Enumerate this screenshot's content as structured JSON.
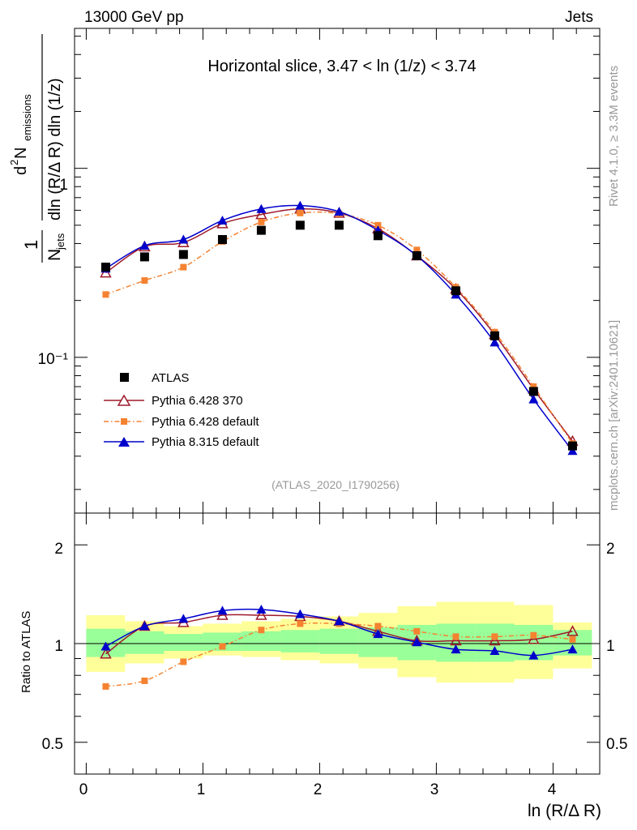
{
  "header": {
    "left": "13000 GeV pp",
    "right": "Jets"
  },
  "side_label_top": "Rivet 4.1.0, ≥ 3.3M events",
  "side_label_bottom": "mcplots.cern.ch [arXiv:2401.10621]",
  "watermark": "(ATLAS_2020_I1790256)",
  "chart_data": [
    {
      "id": "main",
      "type": "scatter",
      "title": "Horizontal slice, 3.47 < ln (1/z) < 3.74",
      "xlabel": "ln (R/Δ R)",
      "ylabel": "1/N_jets dN_emissions / dln(R/ΔR) dln(1/z)",
      "ylabel_parts": {
        "one": "1",
        "njets_n": "N",
        "njets_sub": "jets",
        "num": "d",
        "num_sup": "2",
        "num_n": " N",
        "num_sub": "emissions",
        "den": "dln (R/Δ R) dln (1/z)"
      },
      "yscale": "log",
      "xlim": [
        -0.1,
        4.4
      ],
      "ylim": [
        0.015,
        5.5
      ],
      "x_ticks": [
        "0",
        "1",
        "2",
        "3",
        "4"
      ],
      "y_ticks": [
        "1",
        "10⁻¹"
      ],
      "x": [
        0.167,
        0.5,
        0.833,
        1.167,
        1.5,
        1.833,
        2.167,
        2.5,
        2.833,
        3.167,
        3.5,
        3.833,
        4.167
      ],
      "series": [
        {
          "name": "ATLAS",
          "color": "#000000",
          "marker": "square",
          "values": [
            0.3,
            0.34,
            0.35,
            0.42,
            0.47,
            0.5,
            0.5,
            0.44,
            0.345,
            0.225,
            0.13,
            0.066,
            0.034
          ]
        },
        {
          "name": "Pythia 6.428 370",
          "color": "#9e1a2a",
          "marker": "triangle-open",
          "values": [
            0.28,
            0.385,
            0.405,
            0.51,
            0.57,
            0.61,
            0.58,
            0.48,
            0.345,
            0.23,
            0.132,
            0.068,
            0.036
          ]
        },
        {
          "name": "Pythia 6.428 default",
          "color": "#f58231",
          "marker": "small-square",
          "dash": "dashdot",
          "values": [
            0.215,
            0.255,
            0.3,
            0.41,
            0.52,
            0.58,
            0.575,
            0.5,
            0.37,
            0.235,
            0.136,
            0.07,
            0.035
          ]
        },
        {
          "name": "Pythia 8.315 default",
          "color": "#0000cc",
          "marker": "triangle",
          "values": [
            0.295,
            0.39,
            0.42,
            0.53,
            0.61,
            0.635,
            0.59,
            0.47,
            0.345,
            0.215,
            0.12,
            0.06,
            0.032
          ]
        }
      ],
      "legend_position": "bottom-left"
    },
    {
      "id": "ratio",
      "type": "line",
      "ylabel": "Ratio to ATLAS",
      "xlabel": "ln (R/Δ R)",
      "ylim": [
        0.4,
        2.5
      ],
      "yscale": "log",
      "y_ticks": [
        "2",
        "1",
        "0.5"
      ],
      "x_ticks": [
        "0",
        "1",
        "2",
        "3",
        "4"
      ],
      "x": [
        0.167,
        0.5,
        0.833,
        1.167,
        1.5,
        1.833,
        2.167,
        2.5,
        2.833,
        3.167,
        3.5,
        3.833,
        4.167
      ],
      "bands": {
        "bin_edges": [
          0.0,
          0.333,
          0.667,
          1.0,
          1.333,
          1.667,
          2.0,
          2.333,
          2.667,
          3.0,
          3.333,
          3.667,
          4.0,
          4.333
        ],
        "yellow_lo": [
          0.82,
          0.87,
          0.9,
          0.92,
          0.91,
          0.89,
          0.87,
          0.84,
          0.79,
          0.76,
          0.76,
          0.78,
          0.84
        ],
        "yellow_hi": [
          1.22,
          1.17,
          1.13,
          1.15,
          1.17,
          1.19,
          1.21,
          1.24,
          1.3,
          1.34,
          1.34,
          1.31,
          1.16
        ],
        "green_lo": [
          0.91,
          0.93,
          0.95,
          0.95,
          0.95,
          0.94,
          0.93,
          0.91,
          0.89,
          0.88,
          0.88,
          0.89,
          0.92
        ],
        "green_hi": [
          1.11,
          1.09,
          1.07,
          1.08,
          1.09,
          1.1,
          1.11,
          1.12,
          1.14,
          1.15,
          1.15,
          1.14,
          1.1
        ]
      },
      "series": [
        {
          "name": "Pythia 6.428 370",
          "color": "#9e1a2a",
          "marker": "triangle-open",
          "values": [
            0.93,
            1.13,
            1.16,
            1.22,
            1.22,
            1.21,
            1.17,
            1.09,
            1.02,
            1.02,
            1.02,
            1.03,
            1.09
          ]
        },
        {
          "name": "Pythia 6.428 default",
          "color": "#f58231",
          "marker": "small-square",
          "dash": "dashdot",
          "values": [
            0.74,
            0.77,
            0.88,
            0.98,
            1.1,
            1.15,
            1.15,
            1.13,
            1.09,
            1.05,
            1.05,
            1.06,
            1.03
          ]
        },
        {
          "name": "Pythia 8.315 default",
          "color": "#0000cc",
          "marker": "triangle",
          "values": [
            0.98,
            1.13,
            1.19,
            1.26,
            1.27,
            1.23,
            1.17,
            1.07,
            1.01,
            0.96,
            0.95,
            0.92,
            0.96
          ]
        }
      ]
    }
  ]
}
